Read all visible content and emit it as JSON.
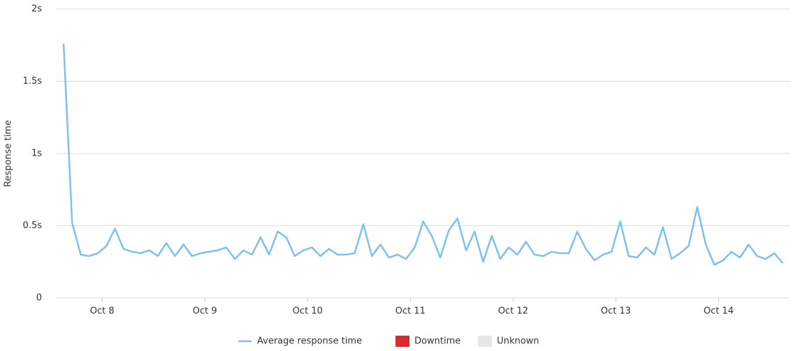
{
  "chart_data": {
    "type": "line",
    "y_label": "Response time",
    "x": [
      7.625,
      7.708,
      7.792,
      7.875,
      7.958,
      8.042,
      8.125,
      8.208,
      8.292,
      8.375,
      8.458,
      8.542,
      8.625,
      8.708,
      8.792,
      8.875,
      8.958,
      9.042,
      9.125,
      9.208,
      9.292,
      9.375,
      9.458,
      9.542,
      9.625,
      9.708,
      9.792,
      9.875,
      9.958,
      10.042,
      10.125,
      10.208,
      10.292,
      10.375,
      10.458,
      10.542,
      10.625,
      10.708,
      10.792,
      10.875,
      10.958,
      11.042,
      11.125,
      11.208,
      11.292,
      11.375,
      11.458,
      11.542,
      11.625,
      11.708,
      11.792,
      11.875,
      11.958,
      12.042,
      12.125,
      12.208,
      12.292,
      12.375,
      12.458,
      12.542,
      12.625,
      12.708,
      12.792,
      12.875,
      12.958,
      13.042,
      13.125,
      13.208,
      13.292,
      13.375,
      13.458,
      13.542,
      13.625,
      13.708,
      13.792,
      13.875,
      13.958,
      14.042,
      14.125,
      14.208,
      14.292,
      14.375,
      14.458,
      14.542,
      14.625
    ],
    "series": [
      {
        "name": "Average response time",
        "color": "#7cc0f4",
        "values": [
          1.76,
          0.52,
          0.3,
          0.29,
          0.31,
          0.36,
          0.48,
          0.34,
          0.32,
          0.31,
          0.33,
          0.29,
          0.38,
          0.29,
          0.37,
          0.29,
          0.31,
          0.32,
          0.33,
          0.35,
          0.27,
          0.33,
          0.3,
          0.42,
          0.3,
          0.46,
          0.42,
          0.29,
          0.33,
          0.35,
          0.29,
          0.34,
          0.3,
          0.3,
          0.31,
          0.51,
          0.29,
          0.37,
          0.28,
          0.3,
          0.27,
          0.35,
          0.53,
          0.43,
          0.28,
          0.47,
          0.55,
          0.33,
          0.46,
          0.25,
          0.43,
          0.27,
          0.35,
          0.3,
          0.39,
          0.3,
          0.29,
          0.32,
          0.31,
          0.31,
          0.46,
          0.34,
          0.26,
          0.3,
          0.32,
          0.53,
          0.29,
          0.28,
          0.35,
          0.3,
          0.49,
          0.27,
          0.31,
          0.36,
          0.63,
          0.37,
          0.23,
          0.26,
          0.32,
          0.28,
          0.37,
          0.29,
          0.27,
          0.31,
          0.24
        ]
      }
    ],
    "legend_items": [
      {
        "name": "Downtime",
        "color": "#d9282f"
      },
      {
        "name": "Unknown",
        "color": "#e6e6e6"
      }
    ],
    "xlim": [
      7.55,
      14.69
    ],
    "xticks": [
      {
        "value": 8,
        "label": "Oct 8"
      },
      {
        "value": 9,
        "label": "Oct 9"
      },
      {
        "value": 10,
        "label": "Oct 10"
      },
      {
        "value": 11,
        "label": "Oct 11"
      },
      {
        "value": 12,
        "label": "Oct 12"
      },
      {
        "value": 13,
        "label": "Oct 13"
      },
      {
        "value": 14,
        "label": "Oct 14"
      }
    ],
    "ylim": [
      0,
      2
    ],
    "yticks": [
      0,
      {
        "value": 0.5,
        "label": "0.5s"
      },
      {
        "value": 1,
        "label": "1s"
      },
      {
        "value": 1.5,
        "label": "1.5s"
      },
      {
        "value": 2,
        "label": "2s"
      }
    ],
    "grid": true
  }
}
